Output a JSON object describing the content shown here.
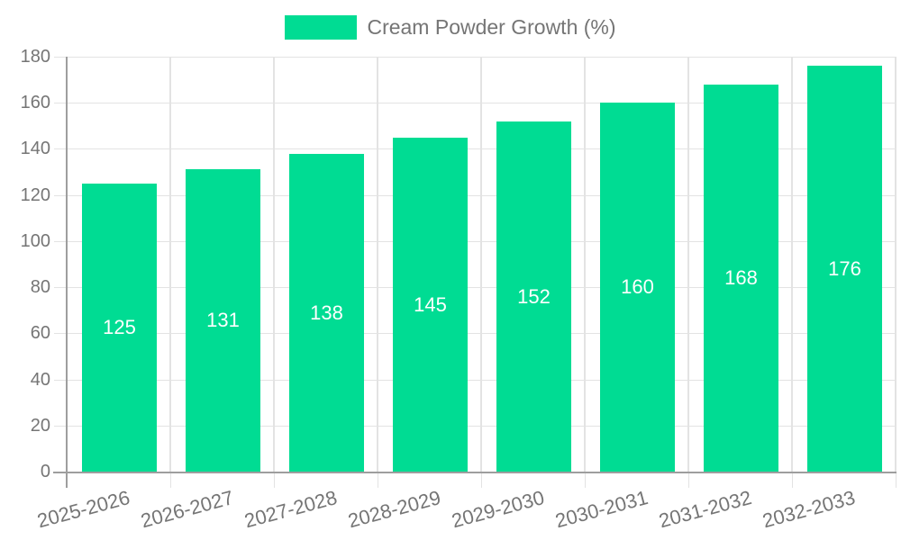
{
  "chart_data": {
    "type": "bar",
    "title": "",
    "legend_position": "top",
    "categories": [
      "2025-2026",
      "2026-2027",
      "2027-2028",
      "2028-2029",
      "2029-2030",
      "2030-2031",
      "2031-2032",
      "2032-2033"
    ],
    "series": [
      {
        "name": "Cream Powder Growth (%)",
        "values": [
          125,
          131,
          138,
          145,
          152,
          160,
          168,
          176
        ],
        "color": "#00DC93"
      }
    ],
    "xlabel": "",
    "ylabel": "",
    "ylim": [
      0,
      180
    ],
    "yticks": [
      0,
      20,
      40,
      60,
      80,
      100,
      120,
      140,
      160,
      180
    ],
    "grid": true,
    "value_labels_shown": true,
    "value_label_position": "center",
    "x_tick_label_rotation_deg": -15
  },
  "colors": {
    "bar": "#00DC93",
    "value_label_text": "#ffffff",
    "axis_line": "#9e9e9e",
    "gridline": "#e3e3e3",
    "tick_text": "#757575",
    "legend_text": "#757575",
    "background": "#ffffff"
  }
}
